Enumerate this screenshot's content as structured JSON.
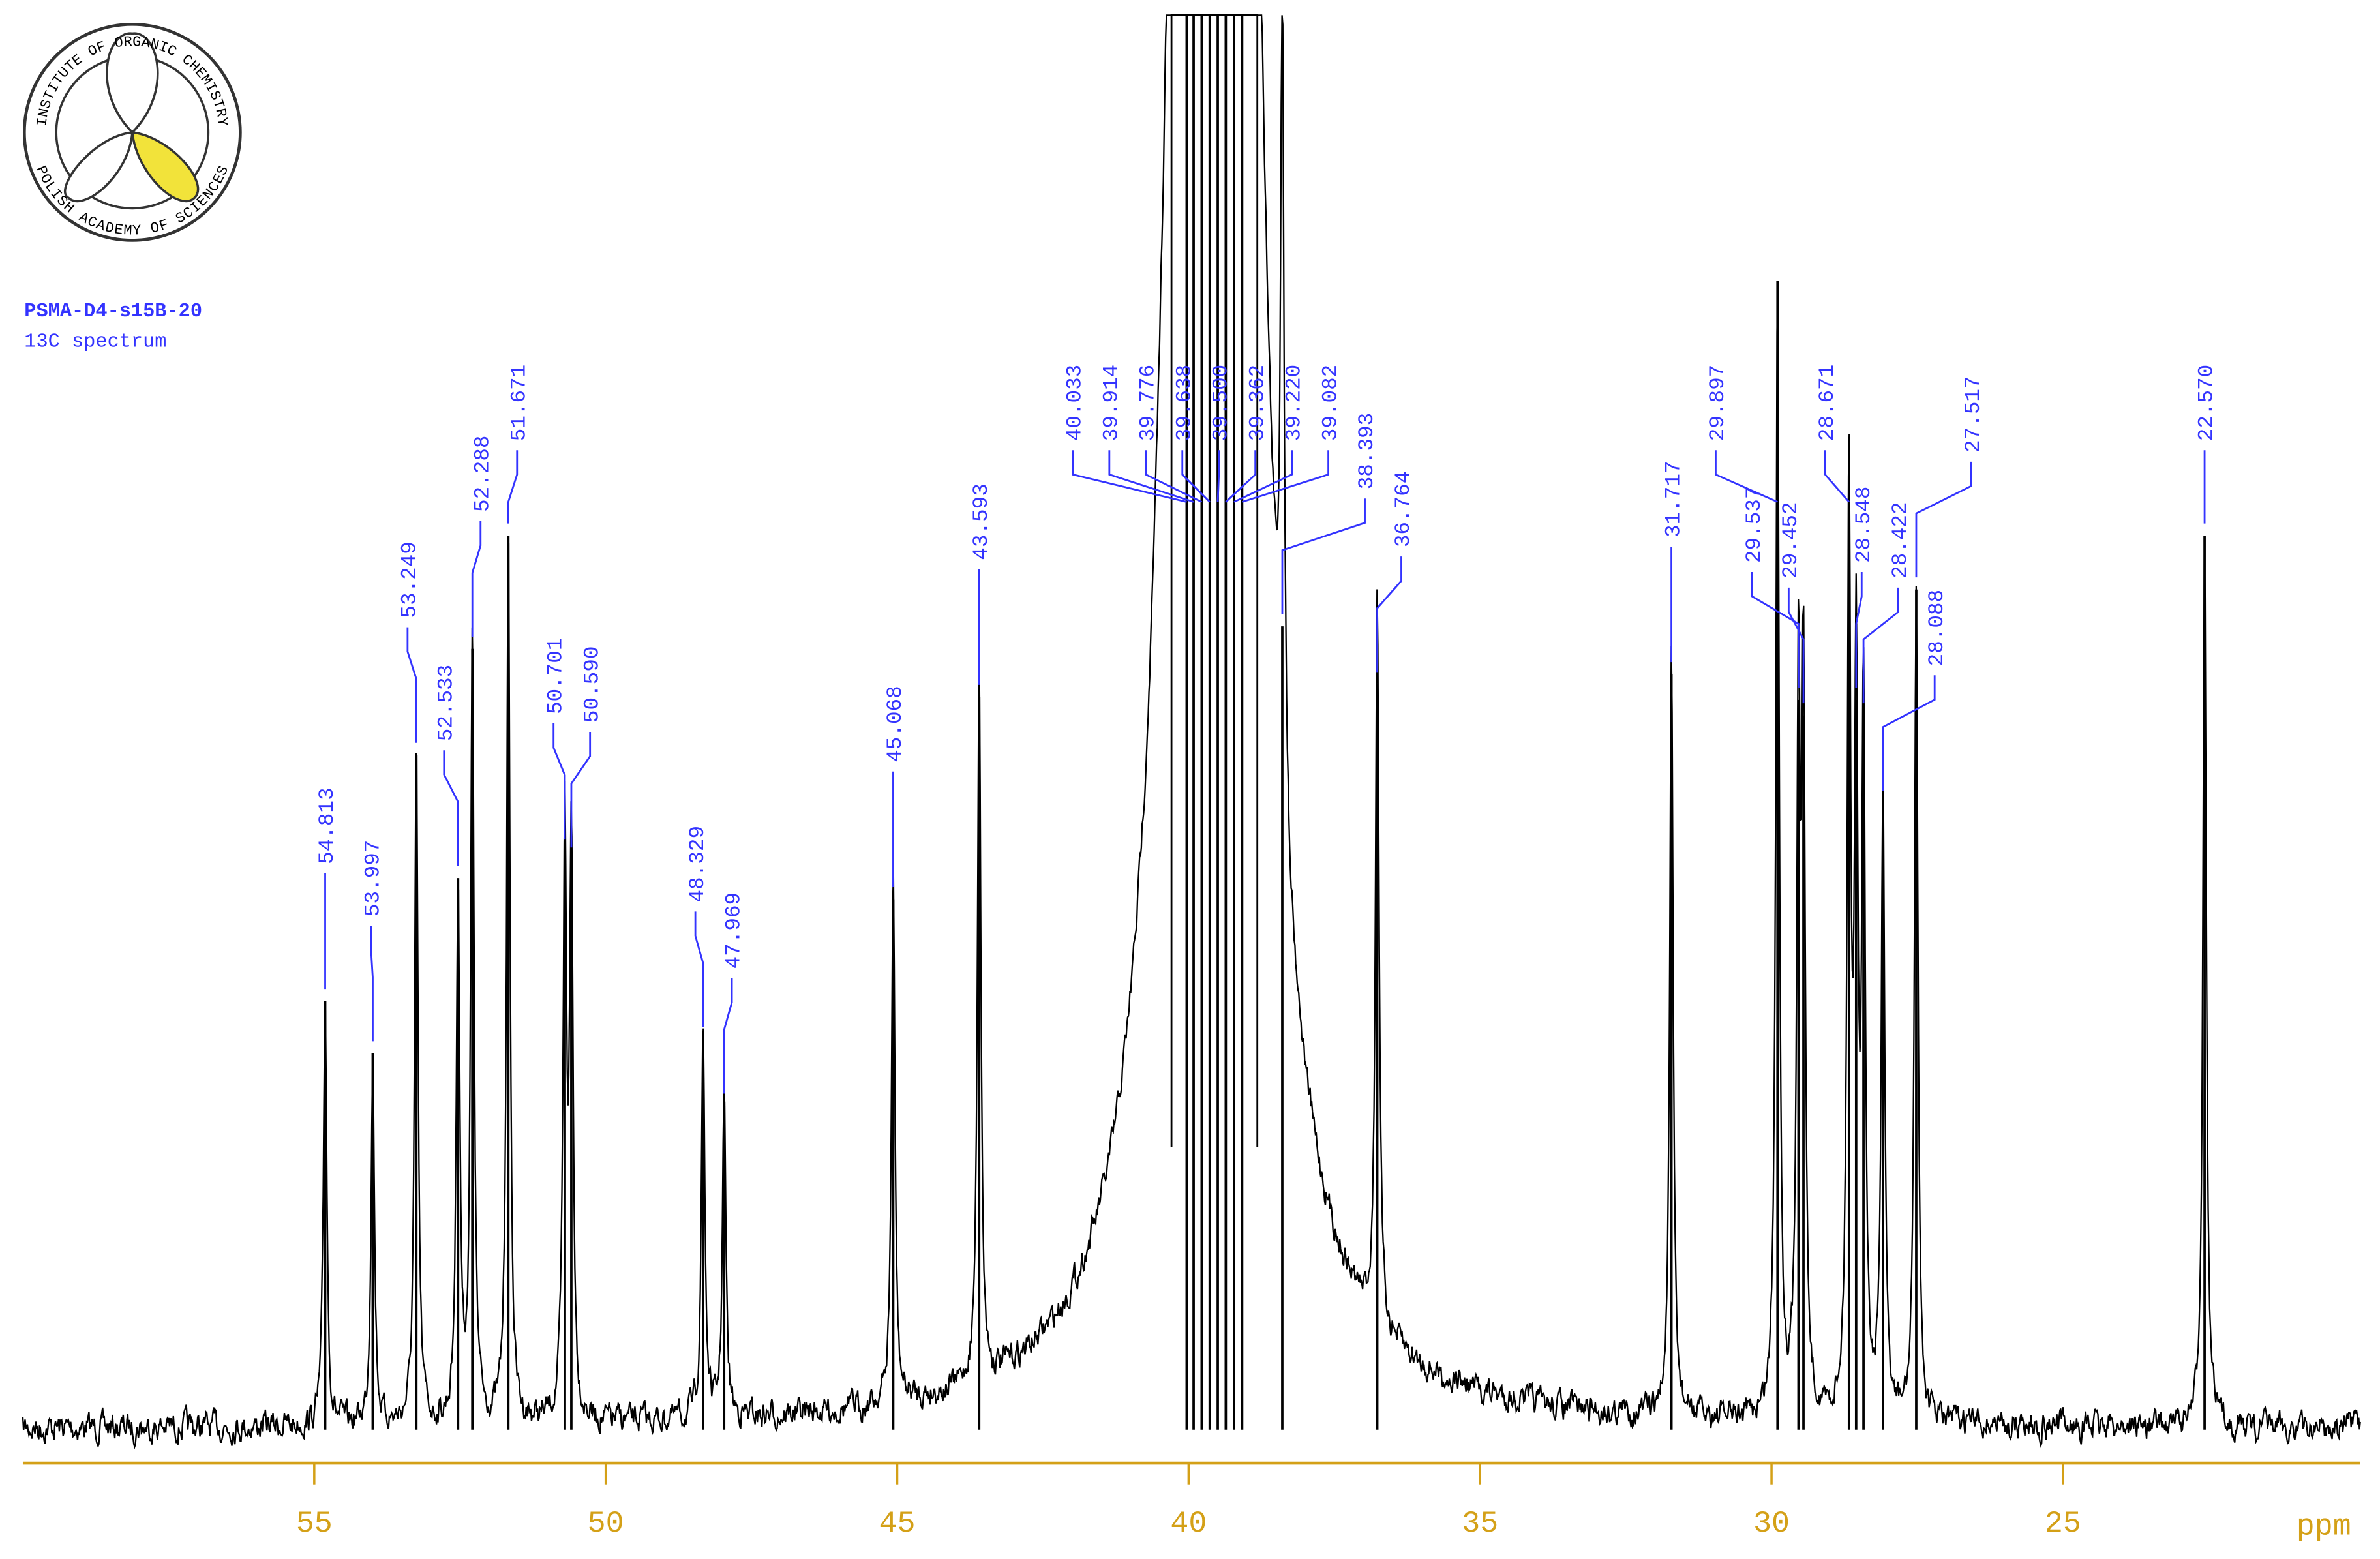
{
  "chart_data": {
    "type": "spectrum",
    "title": "PSMA-D4-s15B-20",
    "subtitle": "13C spectrum",
    "logo_text_top": "INSTITUTE OF ORGANIC CHEMISTRY",
    "logo_text_bottom": "POLISH ACADEMY OF SCIENCES",
    "xlabel": "ppm",
    "xlim": [
      60,
      19.9
    ],
    "xticks": [
      55,
      50,
      45,
      40,
      35,
      30,
      25
    ],
    "ylim": [
      0,
      100
    ],
    "x": [
      54.813,
      53.997,
      53.249,
      52.533,
      52.288,
      51.671,
      50.701,
      50.59,
      48.329,
      47.969,
      45.068,
      43.593,
      40.033,
      39.914,
      39.776,
      39.638,
      39.5,
      39.362,
      39.22,
      39.082,
      38.393,
      36.764,
      31.717,
      29.897,
      29.537,
      29.452,
      28.671,
      28.548,
      28.422,
      28.088,
      27.517,
      22.57
    ],
    "labels": [
      "54.813",
      "53.997",
      "53.249",
      "52.533",
      "52.288",
      "51.671",
      "50.701",
      "50.590",
      "48.329",
      "47.969",
      "45.068",
      "43.593",
      "40.033",
      "39.914",
      "39.776",
      "39.638",
      "39.500",
      "39.362",
      "39.220",
      "39.082",
      "38.393",
      "36.764",
      "31.717",
      "29.897",
      "29.537",
      "29.452",
      "28.671",
      "28.548",
      "28.422",
      "28.088",
      "27.517",
      "22.570"
    ],
    "values": [
      30.3,
      26.6,
      47.7,
      39.0,
      55.2,
      63.2,
      40.9,
      40.3,
      27.6,
      22.9,
      37.5,
      51.8,
      100,
      100,
      100,
      100,
      100,
      100,
      100,
      100,
      56.8,
      52.7,
      53.4,
      81.2,
      51.6,
      50.5,
      66.1,
      51.6,
      50.5,
      44.3,
      59.4,
      63.2
    ],
    "trace_color": "#000000",
    "label_color": "#3333ff",
    "axis_color": "#d4a017"
  }
}
